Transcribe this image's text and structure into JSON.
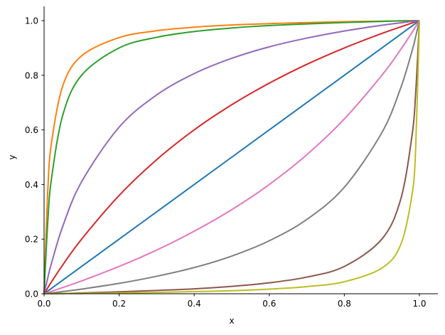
{
  "chart_data": {
    "type": "line",
    "title": "",
    "xlabel": "x",
    "ylabel": "y",
    "xlim": [
      0,
      1.05
    ],
    "ylim": [
      0,
      1.05
    ],
    "xticks": [
      "0.0",
      "0.2",
      "0.4",
      "0.6",
      "0.8",
      "1.0"
    ],
    "yticks": [
      "0.0",
      "0.2",
      "0.4",
      "0.6",
      "0.8",
      "1.0"
    ],
    "grid": false,
    "spines": "left-bottom",
    "x": [
      0,
      0.01,
      0.02,
      0.05,
      0.1,
      0.2,
      0.3,
      0.4,
      0.5,
      0.6,
      0.7,
      0.8,
      0.9,
      0.95,
      0.98,
      0.99,
      1
    ],
    "series": [
      {
        "color": "#1f77b4",
        "values": [
          0,
          0.01,
          0.02,
          0.05,
          0.1,
          0.2,
          0.3,
          0.4,
          0.5,
          0.6,
          0.7,
          0.8,
          0.9,
          0.95,
          0.98,
          0.99,
          1
        ]
      },
      {
        "color": "#ff7f0e",
        "values": [
          0,
          0.381,
          0.555,
          0.762,
          0.871,
          0.938,
          0.963,
          0.976,
          0.984,
          0.989,
          0.993,
          0.996,
          0.998,
          0.999,
          1.0,
          1.0,
          1
        ]
      },
      {
        "color": "#2ca02c",
        "values": [
          0,
          0.267,
          0.424,
          0.655,
          0.8,
          0.9,
          0.939,
          0.96,
          0.973,
          0.982,
          0.988,
          0.993,
          0.997,
          0.999,
          0.999,
          1.0,
          1
        ]
      },
      {
        "color": "#d62728",
        "values": [
          0,
          0.022,
          0.044,
          0.106,
          0.2,
          0.36,
          0.491,
          0.6,
          0.692,
          0.771,
          0.84,
          0.9,
          0.953,
          0.977,
          0.991,
          0.996,
          1
        ]
      },
      {
        "color": "#9467bd",
        "values": [
          0,
          0.059,
          0.113,
          0.248,
          0.41,
          0.61,
          0.728,
          0.806,
          0.862,
          0.904,
          0.936,
          0.962,
          0.983,
          0.992,
          0.997,
          0.998,
          1
        ]
      },
      {
        "color": "#8c564b",
        "values": [
          0,
          0.0,
          0.001,
          0.001,
          0.003,
          0.007,
          0.012,
          0.018,
          0.027,
          0.04,
          0.061,
          0.1,
          0.2,
          0.345,
          0.576,
          0.733,
          1
        ]
      },
      {
        "color": "#e377c2",
        "values": [
          0,
          0.004,
          0.009,
          0.023,
          0.047,
          0.1,
          0.16,
          0.229,
          0.308,
          0.4,
          0.509,
          0.64,
          0.8,
          0.894,
          0.956,
          0.978,
          1
        ]
      },
      {
        "color": "#7f7f7f",
        "values": [
          0,
          0.002,
          0.003,
          0.008,
          0.017,
          0.038,
          0.064,
          0.096,
          0.138,
          0.194,
          0.272,
          0.39,
          0.59,
          0.753,
          0.887,
          0.941,
          1
        ]
      },
      {
        "color": "#bcbd22",
        "values": [
          0,
          0.0,
          0.0,
          0.001,
          0.001,
          0.003,
          0.005,
          0.008,
          0.011,
          0.017,
          0.026,
          0.044,
          0.094,
          0.179,
          0.36,
          0.532,
          1
        ]
      }
    ]
  }
}
